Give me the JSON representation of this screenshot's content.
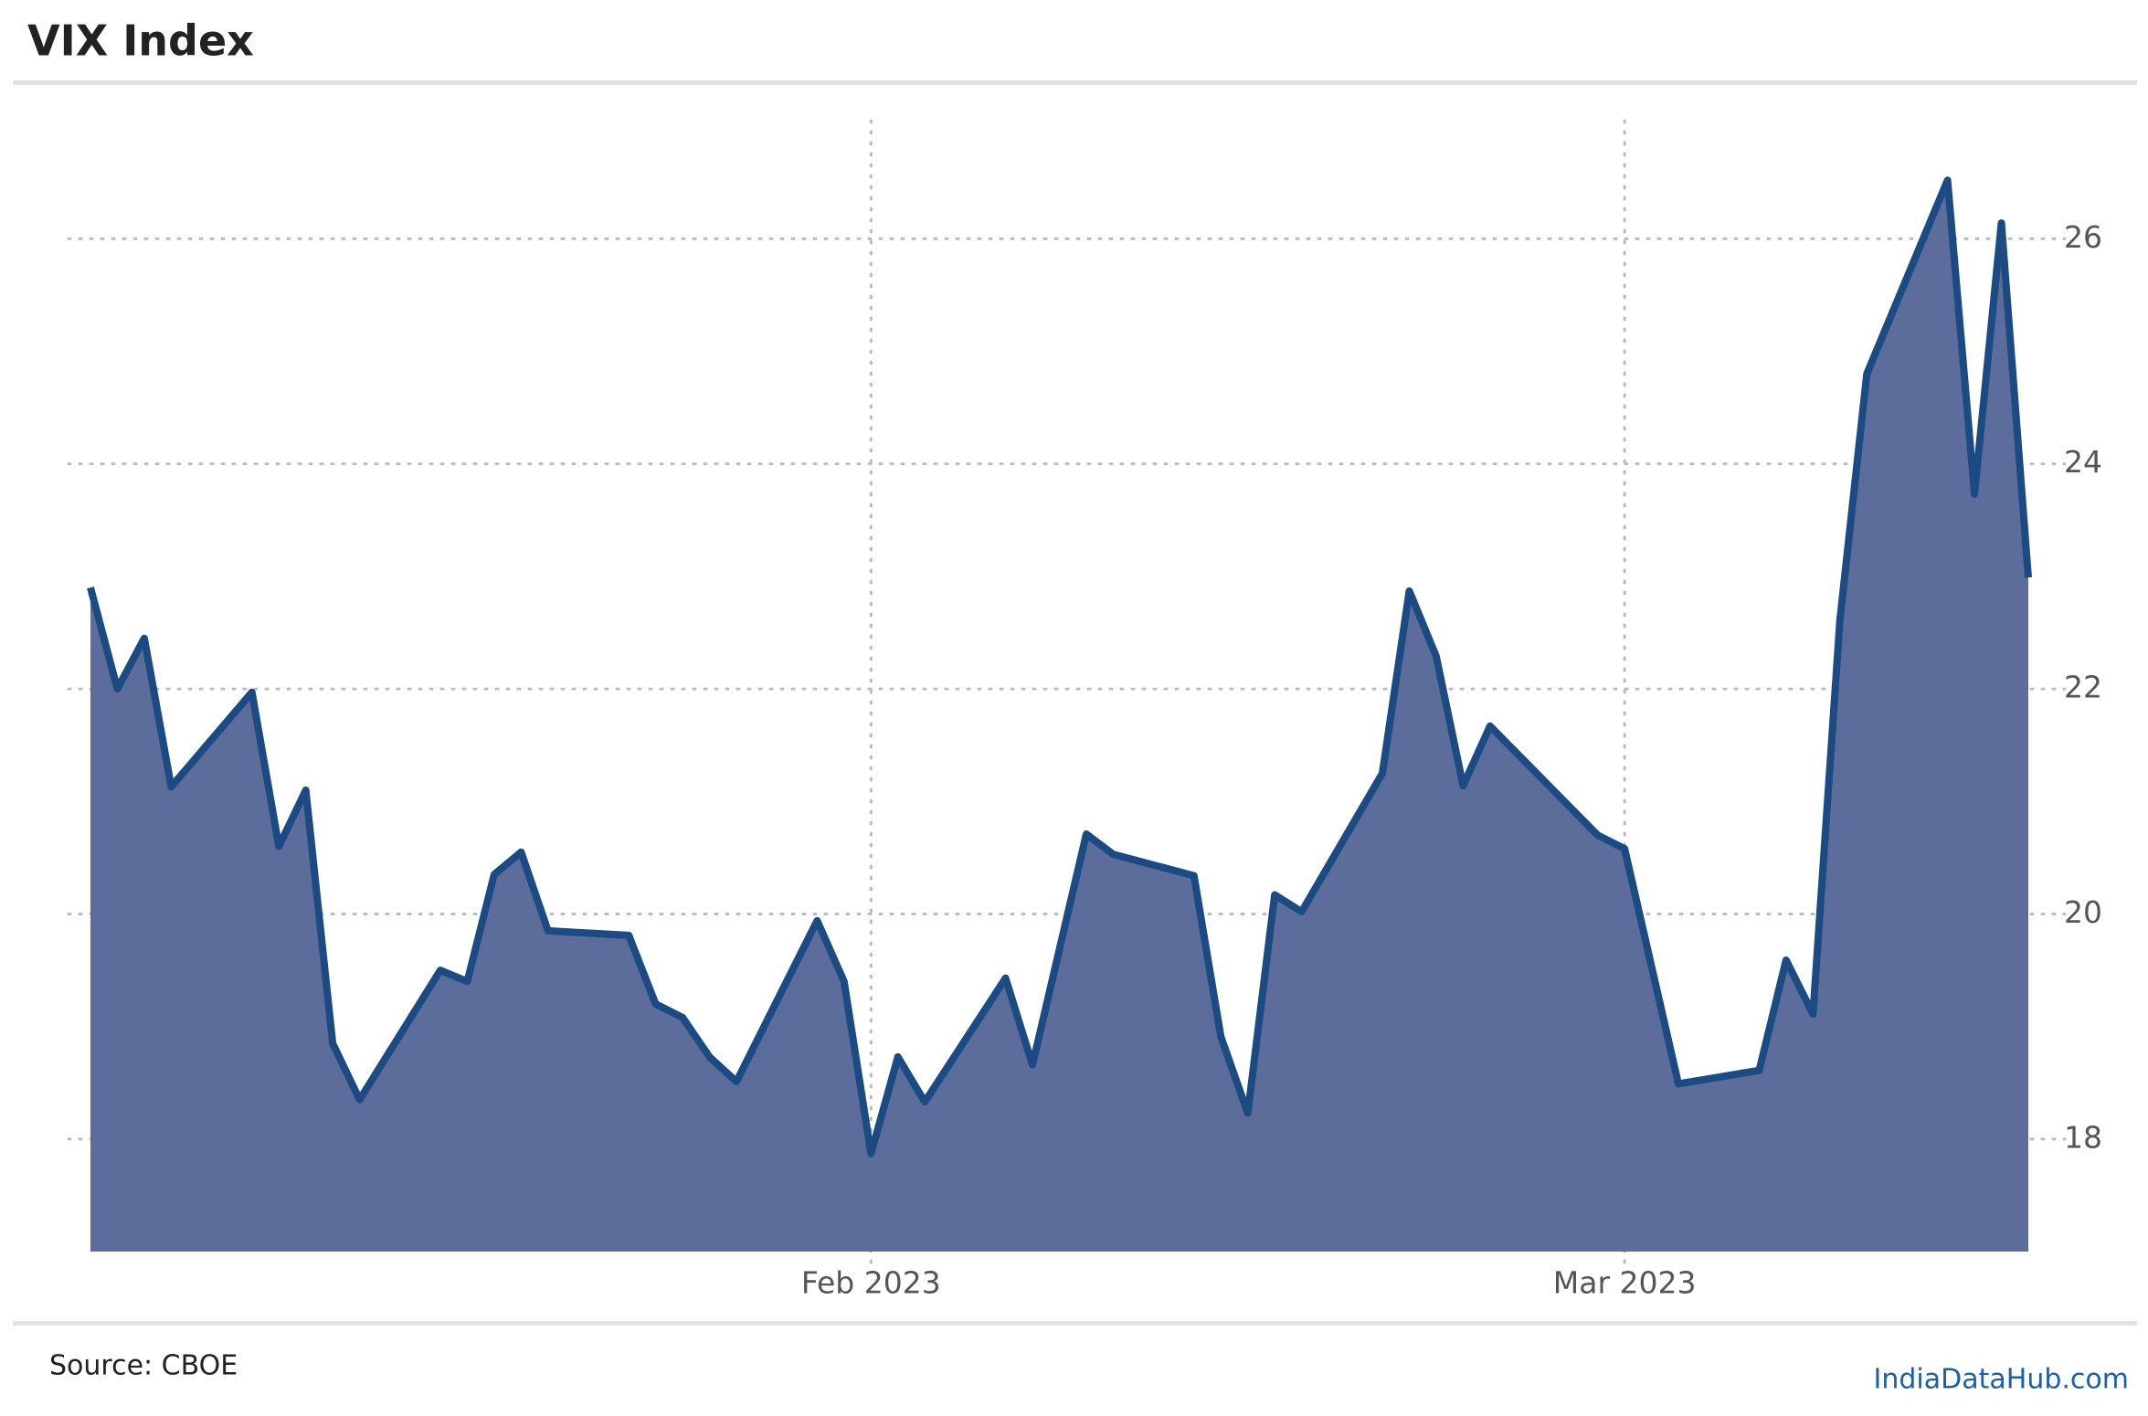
{
  "chart_data": {
    "type": "area",
    "title": "VIX Index",
    "x": [
      "2023-01-03",
      "2023-01-04",
      "2023-01-05",
      "2023-01-06",
      "2023-01-09",
      "2023-01-10",
      "2023-01-11",
      "2023-01-12",
      "2023-01-13",
      "2023-01-16",
      "2023-01-17",
      "2023-01-18",
      "2023-01-19",
      "2023-01-20",
      "2023-01-23",
      "2023-01-24",
      "2023-01-25",
      "2023-01-26",
      "2023-01-27",
      "2023-01-30",
      "2023-01-31",
      "2023-02-01",
      "2023-02-02",
      "2023-02-03",
      "2023-02-06",
      "2023-02-07",
      "2023-02-09",
      "2023-02-10",
      "2023-02-13",
      "2023-02-14",
      "2023-02-15",
      "2023-02-16",
      "2023-02-17",
      "2023-02-20",
      "2023-02-21",
      "2023-02-22",
      "2023-02-23",
      "2023-02-24",
      "2023-02-28",
      "2023-03-01",
      "2023-03-03",
      "2023-03-06",
      "2023-03-07",
      "2023-03-08",
      "2023-03-09",
      "2023-03-10",
      "2023-03-13",
      "2023-03-14",
      "2023-03-15",
      "2023-03-16"
    ],
    "values": [
      22.9,
      22.0,
      22.45,
      21.13,
      21.97,
      20.6,
      21.1,
      18.85,
      18.35,
      19.5,
      19.4,
      20.35,
      20.55,
      19.85,
      19.81,
      19.2,
      19.08,
      18.73,
      18.51,
      19.94,
      19.4,
      17.87,
      18.73,
      18.33,
      19.43,
      18.66,
      20.71,
      20.53,
      20.34,
      18.91,
      18.23,
      20.17,
      20.02,
      21.25,
      22.87,
      22.29,
      21.14,
      21.67,
      20.7,
      20.58,
      18.49,
      18.61,
      19.59,
      19.11,
      22.61,
      24.8,
      26.52,
      23.73,
      26.14,
      22.99
    ],
    "color": "#1b4b82",
    "fill": "#5c6c9b",
    "xlim": [
      "2023-01-03",
      "2023-03-16"
    ],
    "xticks": [
      {
        "value": "2023-02-01",
        "label": "Feb 2023"
      },
      {
        "value": "2023-03-01",
        "label": "Mar 2023"
      }
    ],
    "ylim": [
      17,
      27.05
    ],
    "yticks": [
      18,
      20,
      22,
      24,
      26
    ],
    "grid": true,
    "source": "Source: CBOE",
    "watermark": "IndiaDataHub.com"
  }
}
